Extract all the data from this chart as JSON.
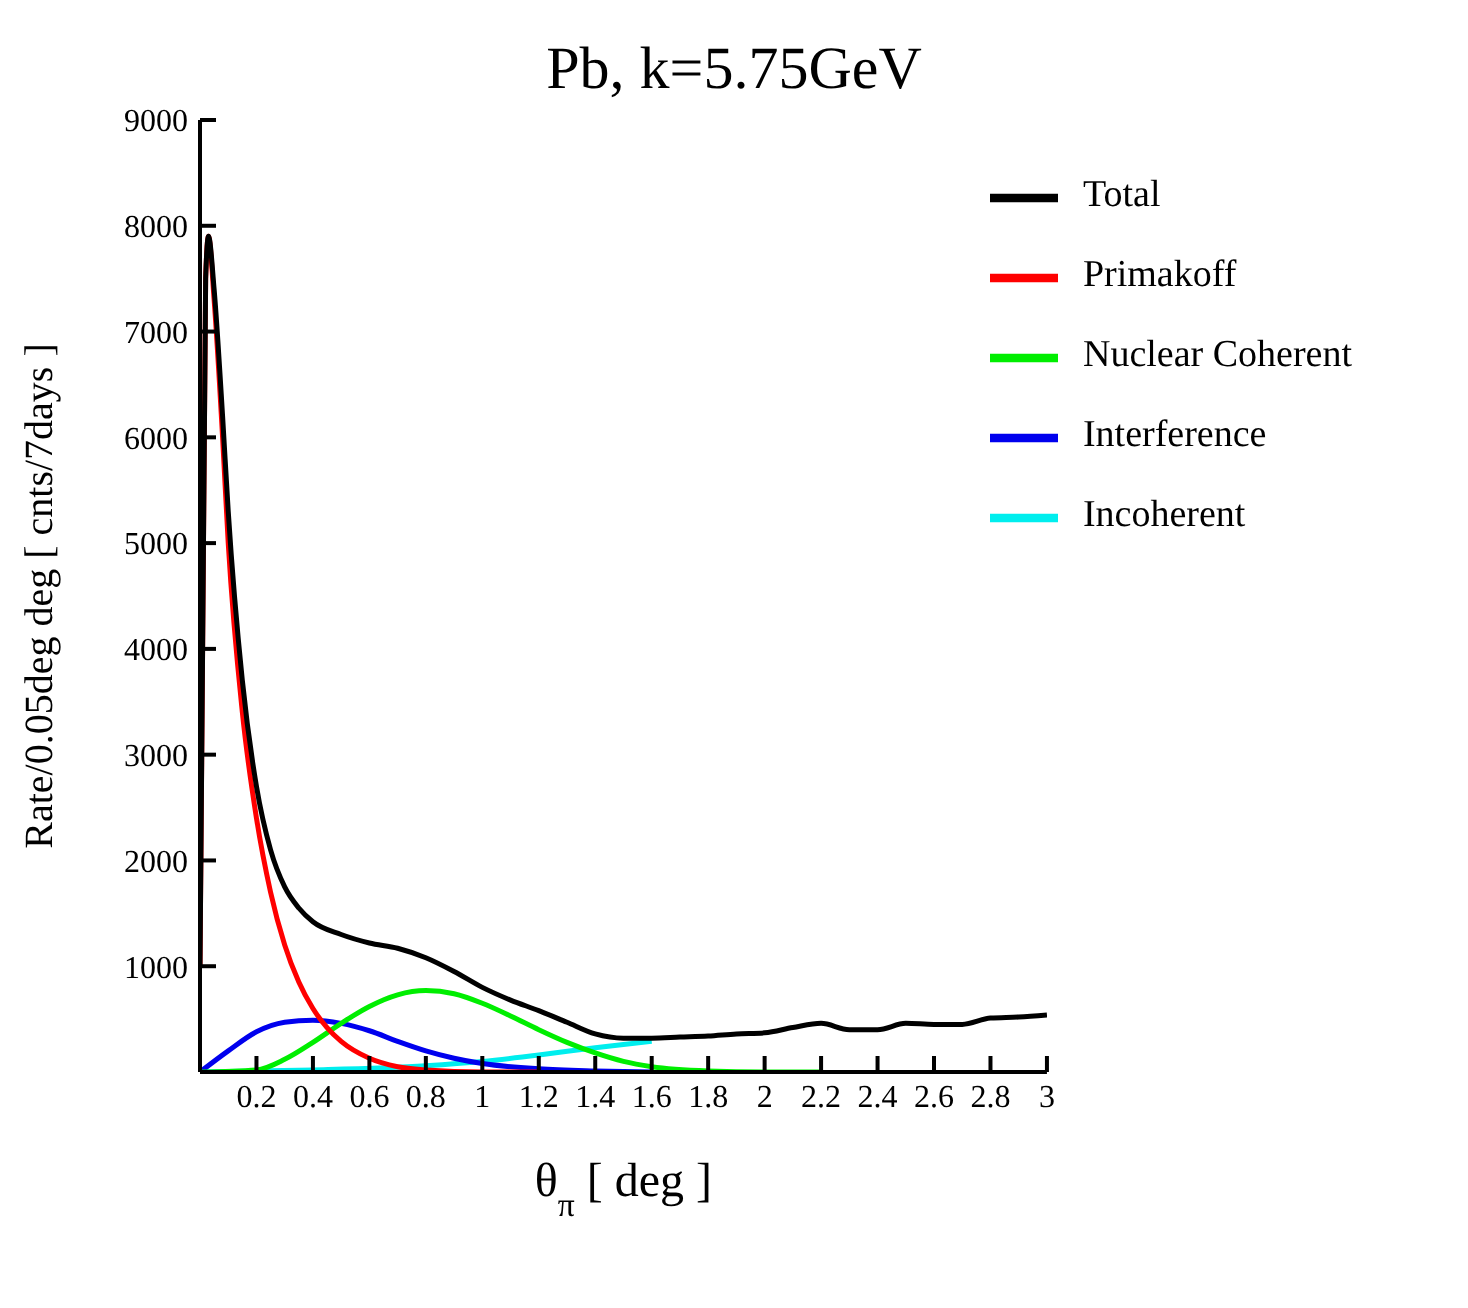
{
  "chart_data": {
    "type": "line",
    "title": "Pb, k=5.75GeV",
    "xlabel": "θ$_{π}$ [ deg ]",
    "ylabel": "Rate/0.05deg deg [ cnts/7days ]",
    "xlim": [
      0,
      3
    ],
    "xticks": [
      0.2,
      0.4,
      0.6,
      0.8,
      1,
      1.2,
      1.4,
      1.6,
      1.8,
      2,
      2.2,
      2.4,
      2.6,
      2.8,
      3
    ],
    "ylim": [
      0,
      9000
    ],
    "yticks": [
      {
        "value": 0,
        "label": null
      },
      1000,
      2000,
      3000,
      4000,
      5000,
      6000,
      7000,
      8000,
      9000
    ],
    "grid": false,
    "legend": "top right",
    "marker": "none",
    "line_style": "solid",
    "series": [
      {
        "name": "Total",
        "color": "#000000",
        "x": [
          0,
          0.02,
          0.03,
          0.05,
          0.08,
          0.1,
          0.15,
          0.2,
          0.25,
          0.3,
          0.35,
          0.4,
          0.5,
          0.6,
          0.7,
          0.8,
          0.9,
          1,
          1.1,
          1.2,
          1.3,
          1.4,
          1.5,
          1.6,
          1.7,
          1.8,
          1.9,
          2,
          2.1,
          2.2,
          2.3,
          2.4,
          2.5,
          2.6,
          2.7,
          2.8,
          2.9,
          3
        ],
        "values": [
          1000,
          7500,
          7900,
          7400,
          6200,
          5300,
          3700,
          2700,
          2100,
          1750,
          1550,
          1420,
          1300,
          1220,
          1170,
          1080,
          950,
          800,
          680,
          580,
          470,
          360,
          320,
          320,
          330,
          340,
          360,
          370,
          420,
          460,
          400,
          400,
          460,
          450,
          450,
          510,
          520,
          540
        ]
      },
      {
        "name": "Primakoff",
        "color": "#ff0000",
        "x": [
          0,
          0.02,
          0.03,
          0.05,
          0.08,
          0.1,
          0.15,
          0.2,
          0.25,
          0.3,
          0.35,
          0.4,
          0.45,
          0.5,
          0.6,
          0.7,
          0.8,
          1,
          1.2
        ],
        "values": [
          1000,
          7500,
          7900,
          7300,
          6000,
          5000,
          3400,
          2400,
          1700,
          1200,
          850,
          600,
          420,
          290,
          130,
          50,
          20,
          0,
          0
        ]
      },
      {
        "name": "Nuclear Coherent",
        "color": "#00ee00",
        "x": [
          0,
          0.2,
          0.3,
          0.4,
          0.5,
          0.6,
          0.7,
          0.8,
          0.9,
          1,
          1.1,
          1.2,
          1.3,
          1.4,
          1.5,
          1.6,
          1.8,
          2,
          2.2
        ],
        "values": [
          0,
          20,
          120,
          280,
          460,
          620,
          730,
          770,
          740,
          650,
          530,
          400,
          280,
          180,
          100,
          50,
          10,
          0,
          0
        ]
      },
      {
        "name": "Interference",
        "color": "#0000ee",
        "x": [
          0,
          0.1,
          0.2,
          0.3,
          0.4,
          0.5,
          0.6,
          0.7,
          0.8,
          0.9,
          1,
          1.2,
          1.4,
          1.6
        ],
        "values": [
          0,
          200,
          380,
          470,
          490,
          460,
          390,
          290,
          200,
          130,
          80,
          30,
          10,
          0
        ]
      },
      {
        "name": "Incoherent",
        "color": "#00eeee",
        "x": [
          0,
          0.4,
          0.8,
          1,
          1.2,
          1.4,
          1.6
        ],
        "values": [
          0,
          20,
          60,
          100,
          160,
          230,
          290
        ]
      }
    ]
  }
}
